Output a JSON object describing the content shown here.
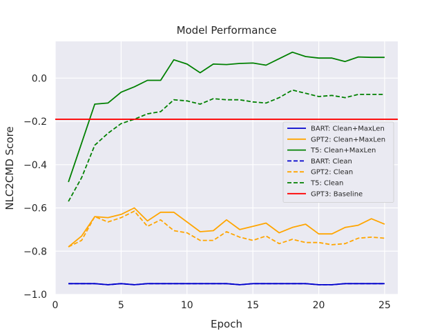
{
  "chart_data": {
    "type": "line",
    "title": "Model Performance",
    "xlabel": "Epoch",
    "ylabel": "NLC2CMD Score",
    "xlim": [
      0,
      26
    ],
    "ylim": [
      -1.0,
      0.17
    ],
    "xticks": [
      0,
      5,
      10,
      15,
      20,
      25
    ],
    "yticks": [
      -1.0,
      -0.8,
      -0.6,
      -0.4,
      -0.2,
      0.0
    ],
    "xtick_labels": [
      "0",
      "5",
      "10",
      "15",
      "20",
      "25"
    ],
    "ytick_labels": [
      "−1.0",
      "−0.8",
      "−0.6",
      "−0.4",
      "−0.2",
      "0.0"
    ],
    "grid": true,
    "legend_position": "center-right",
    "x": [
      1,
      2,
      3,
      4,
      5,
      6,
      7,
      8,
      9,
      10,
      11,
      12,
      13,
      14,
      15,
      16,
      17,
      18,
      19,
      20,
      21,
      22,
      23,
      24,
      25
    ],
    "series": [
      {
        "name": "BART: Clean+MaxLen",
        "color": "#0000cc",
        "style": "solid",
        "values": [
          -0.95,
          -0.95,
          -0.95,
          -0.955,
          -0.95,
          -0.955,
          -0.95,
          -0.95,
          -0.95,
          -0.95,
          -0.95,
          -0.95,
          -0.95,
          -0.955,
          -0.95,
          -0.95,
          -0.95,
          -0.95,
          -0.95,
          -0.955,
          -0.955,
          -0.95,
          -0.95,
          -0.95,
          -0.95
        ]
      },
      {
        "name": "GPT2: Clean+MaxLen",
        "color": "#ffa500",
        "style": "solid",
        "values": [
          -0.78,
          -0.73,
          -0.64,
          -0.645,
          -0.63,
          -0.6,
          -0.66,
          -0.62,
          -0.62,
          -0.665,
          -0.71,
          -0.705,
          -0.655,
          -0.7,
          -0.685,
          -0.67,
          -0.715,
          -0.69,
          -0.675,
          -0.72,
          -0.72,
          -0.69,
          -0.68,
          -0.65,
          -0.675
        ]
      },
      {
        "name": "T5: Clean+MaxLen",
        "color": "#008000",
        "style": "solid",
        "values": [
          -0.48,
          -0.3,
          -0.12,
          -0.115,
          -0.065,
          -0.04,
          -0.01,
          -0.01,
          0.085,
          0.065,
          0.025,
          0.065,
          0.063,
          0.068,
          0.07,
          0.06,
          0.09,
          0.12,
          0.1,
          0.093,
          0.093,
          0.077,
          0.098,
          0.096,
          0.096
        ]
      },
      {
        "name": "BART: Clean",
        "color": "#0000cc",
        "style": "dashed",
        "values": [
          -0.95,
          -0.95,
          -0.95,
          -0.955,
          -0.95,
          -0.955,
          -0.95,
          -0.95,
          -0.95,
          -0.95,
          -0.95,
          -0.95,
          -0.95,
          -0.955,
          -0.95,
          -0.95,
          -0.95,
          -0.95,
          -0.95,
          -0.955,
          -0.955,
          -0.95,
          -0.95,
          -0.95,
          -0.95
        ]
      },
      {
        "name": "GPT2: Clean",
        "color": "#ffa500",
        "style": "dashed",
        "values": [
          -0.78,
          -0.75,
          -0.64,
          -0.665,
          -0.645,
          -0.615,
          -0.685,
          -0.655,
          -0.705,
          -0.715,
          -0.75,
          -0.75,
          -0.71,
          -0.735,
          -0.75,
          -0.73,
          -0.765,
          -0.745,
          -0.76,
          -0.76,
          -0.77,
          -0.765,
          -0.74,
          -0.735,
          -0.74
        ]
      },
      {
        "name": "T5: Clean",
        "color": "#008000",
        "style": "dashed",
        "values": [
          -0.57,
          -0.46,
          -0.31,
          -0.255,
          -0.21,
          -0.19,
          -0.165,
          -0.155,
          -0.1,
          -0.105,
          -0.12,
          -0.095,
          -0.1,
          -0.1,
          -0.11,
          -0.115,
          -0.09,
          -0.055,
          -0.07,
          -0.085,
          -0.08,
          -0.09,
          -0.075,
          -0.075,
          -0.075
        ]
      },
      {
        "name": "GPT3: Baseline",
        "color": "#ff0000",
        "style": "solid",
        "type": "hline",
        "value": -0.19
      }
    ]
  }
}
